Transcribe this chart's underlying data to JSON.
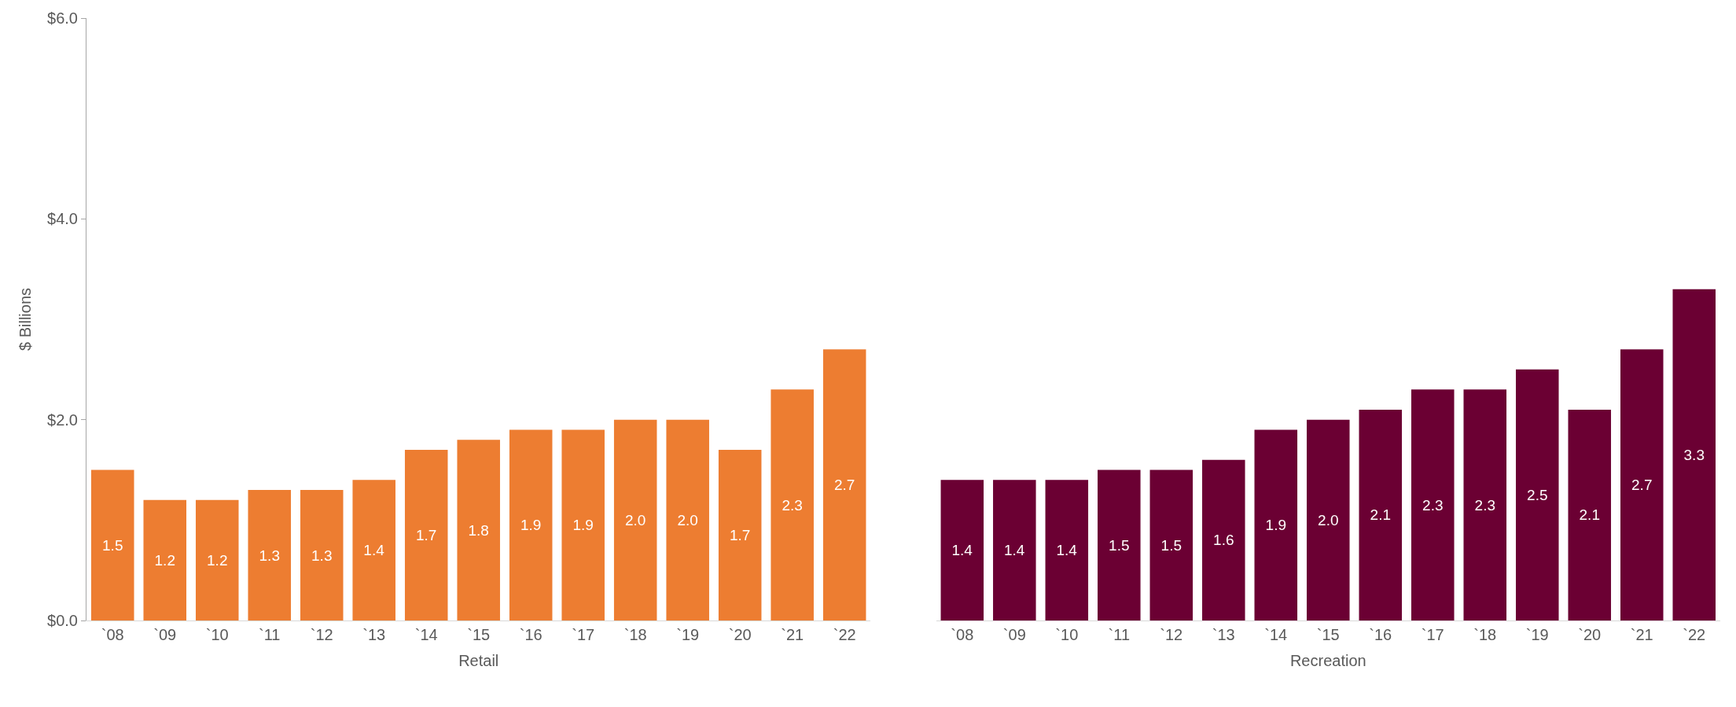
{
  "chart_data": [
    {
      "type": "bar",
      "ylabel": "$ Billions",
      "xlabel": "Retail",
      "categories": [
        "`08",
        "`09",
        "`10",
        "`11",
        "`12",
        "`13",
        "`14",
        "`15",
        "`16",
        "`17",
        "`18",
        "`19",
        "`20",
        "`21",
        "`22"
      ],
      "values": [
        1.5,
        1.2,
        1.2,
        1.3,
        1.3,
        1.4,
        1.7,
        1.8,
        1.9,
        1.9,
        2.0,
        2.0,
        1.7,
        2.3,
        2.7
      ],
      "value_labels": [
        "1.5",
        "1.2",
        "1.2",
        "1.3",
        "1.3",
        "1.4",
        "1.7",
        "1.8",
        "1.9",
        "1.9",
        "2.0",
        "2.0",
        "1.7",
        "2.3",
        "2.7"
      ],
      "color": "#ed7d31",
      "ylim": [
        0,
        6
      ],
      "yticks": [
        {
          "value": 0,
          "label": "$0.0"
        },
        {
          "value": 2,
          "label": "$2.0"
        },
        {
          "value": 4,
          "label": "$4.0"
        },
        {
          "value": 6,
          "label": "$6.0"
        }
      ]
    },
    {
      "type": "bar",
      "xlabel": "Recreation",
      "categories": [
        "`08",
        "`09",
        "`10",
        "`11",
        "`12",
        "`13",
        "`14",
        "`15",
        "`16",
        "`17",
        "`18",
        "`19",
        "`20",
        "`21",
        "`22"
      ],
      "values": [
        1.4,
        1.4,
        1.4,
        1.5,
        1.5,
        1.6,
        1.9,
        2.0,
        2.1,
        2.3,
        2.3,
        2.5,
        2.1,
        2.7,
        3.3
      ],
      "value_labels": [
        "1.4",
        "1.4",
        "1.4",
        "1.5",
        "1.5",
        "1.6",
        "1.9",
        "2.0",
        "2.1",
        "2.3",
        "2.3",
        "2.5",
        "2.1",
        "2.7",
        "3.3"
      ],
      "color": "#6b0033",
      "ylim": [
        0,
        6
      ],
      "tick_labels": "x"
    }
  ]
}
